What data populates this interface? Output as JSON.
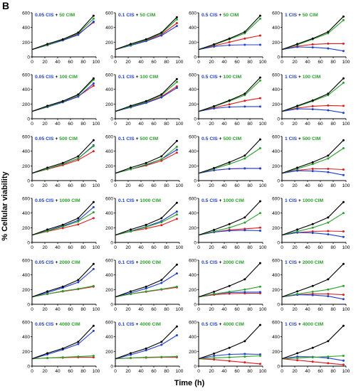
{
  "figure": {
    "panel_letter": "B",
    "ylabel": "% Cellular viability",
    "xlabel": "Time (h)"
  },
  "colors": {
    "control": "#000000",
    "combo": "#2ca02c",
    "cis": "#1f3fd1",
    "cim": "#e31a1c",
    "title_cis": "#1f3fd1",
    "title_cim": "#2ca02c"
  },
  "chart_data": {
    "type": "scatter",
    "grid": false,
    "x_ticks": [
      0,
      20,
      40,
      60,
      80,
      100
    ],
    "y_ticks": [
      0,
      200,
      400,
      600
    ],
    "xlim": [
      0,
      100
    ],
    "ylim": [
      0,
      600
    ],
    "time_points": [
      0,
      24,
      48,
      72,
      96
    ],
    "panel_columns": [
      "0.05 CIS",
      "0.1 CIS",
      "0.5 CIS",
      "1 CIS"
    ],
    "panel_rows": [
      "50 CIM",
      "100 CIM",
      "500 CIM",
      "1000 CIM",
      "2000 CIM",
      "4000 CIM"
    ],
    "panels": [
      {
        "cis": "0.05 CIS",
        "cim": "50 CIM",
        "control": [
          100,
          175,
          240,
          330,
          560
        ],
        "combo": [
          100,
          165,
          235,
          320,
          520
        ],
        "cis_curve": [
          100,
          160,
          225,
          300,
          480
        ],
        "cim_curve": [
          100,
          160,
          230,
          310,
          470
        ]
      },
      {
        "cis": "0.1 CIS",
        "cim": "50 CIM",
        "control": [
          100,
          175,
          240,
          330,
          540
        ],
        "combo": [
          100,
          165,
          230,
          320,
          510
        ],
        "cis_curve": [
          100,
          155,
          215,
          290,
          420
        ],
        "cim_curve": [
          100,
          160,
          225,
          305,
          460
        ]
      },
      {
        "cis": "0.5 CIS",
        "cim": "50 CIM",
        "control": [
          100,
          170,
          250,
          340,
          560
        ],
        "combo": [
          100,
          165,
          240,
          320,
          520
        ],
        "cis_curve": [
          100,
          140,
          160,
          165,
          165
        ],
        "cim_curve": [
          100,
          150,
          200,
          250,
          290
        ]
      },
      {
        "cis": "1 CIS",
        "cim": "50 CIM",
        "control": [
          100,
          175,
          250,
          340,
          550
        ],
        "combo": [
          100,
          165,
          240,
          320,
          500
        ],
        "cis_curve": [
          100,
          135,
          130,
          115,
          80
        ],
        "cim_curve": [
          100,
          145,
          170,
          180,
          180
        ]
      },
      {
        "cis": "0.05 CIS",
        "cim": "100 CIM",
        "control": [
          100,
          175,
          240,
          330,
          550
        ],
        "combo": [
          100,
          165,
          235,
          320,
          530
        ],
        "cis_curve": [
          100,
          160,
          225,
          300,
          480
        ],
        "cim_curve": [
          100,
          160,
          225,
          305,
          450
        ]
      },
      {
        "cis": "0.1 CIS",
        "cim": "100 CIM",
        "control": [
          100,
          175,
          240,
          330,
          540
        ],
        "combo": [
          100,
          165,
          230,
          320,
          500
        ],
        "cis_curve": [
          100,
          155,
          215,
          290,
          420
        ],
        "cim_curve": [
          100,
          160,
          220,
          300,
          440
        ]
      },
      {
        "cis": "0.5 CIS",
        "cim": "100 CIM",
        "control": [
          100,
          170,
          250,
          340,
          560
        ],
        "combo": [
          100,
          165,
          240,
          320,
          520
        ],
        "cis_curve": [
          100,
          140,
          160,
          165,
          165
        ],
        "cim_curve": [
          100,
          150,
          195,
          245,
          280
        ]
      },
      {
        "cis": "1 CIS",
        "cim": "100 CIM",
        "control": [
          100,
          175,
          250,
          340,
          550
        ],
        "combo": [
          100,
          165,
          240,
          320,
          490
        ],
        "cis_curve": [
          100,
          135,
          130,
          115,
          80
        ],
        "cim_curve": [
          100,
          145,
          170,
          180,
          175
        ]
      },
      {
        "cis": "0.05 CIS",
        "cim": "500 CIM",
        "control": [
          100,
          175,
          240,
          330,
          550
        ],
        "combo": [
          100,
          160,
          225,
          300,
          470
        ],
        "cis_curve": [
          100,
          160,
          225,
          300,
          480
        ],
        "cim_curve": [
          100,
          155,
          210,
          280,
          400
        ]
      },
      {
        "cis": "0.1 CIS",
        "cim": "500 CIM",
        "control": [
          100,
          175,
          240,
          330,
          540
        ],
        "combo": [
          100,
          155,
          220,
          290,
          460
        ],
        "cis_curve": [
          100,
          155,
          215,
          290,
          420
        ],
        "cim_curve": [
          100,
          155,
          205,
          270,
          380
        ]
      },
      {
        "cis": "0.5 CIS",
        "cim": "500 CIM",
        "control": [
          100,
          170,
          250,
          340,
          560
        ],
        "combo": [
          100,
          160,
          225,
          300,
          440
        ],
        "cis_curve": [
          100,
          140,
          160,
          165,
          165
        ],
        "cim_curve": [
          100,
          140,
          160,
          165,
          165
        ]
      },
      {
        "cis": "1 CIS",
        "cim": "500 CIM",
        "control": [
          100,
          175,
          250,
          340,
          550
        ],
        "combo": [
          100,
          160,
          225,
          300,
          440
        ],
        "cis_curve": [
          100,
          135,
          130,
          115,
          75
        ],
        "cim_curve": [
          100,
          140,
          160,
          160,
          150
        ]
      },
      {
        "cis": "0.05 CIS",
        "cim": "1000 CIM",
        "control": [
          100,
          175,
          240,
          330,
          550
        ],
        "combo": [
          100,
          155,
          215,
          285,
          410
        ],
        "cis_curve": [
          100,
          160,
          225,
          300,
          480
        ],
        "cim_curve": [
          100,
          150,
          195,
          245,
          330
        ]
      },
      {
        "cis": "0.1 CIS",
        "cim": "1000 CIM",
        "control": [
          100,
          175,
          240,
          330,
          540
        ],
        "combo": [
          100,
          150,
          210,
          275,
          380
        ],
        "cis_curve": [
          100,
          155,
          215,
          290,
          420
        ],
        "cim_curve": [
          100,
          150,
          190,
          235,
          320
        ]
      },
      {
        "cis": "0.5 CIS",
        "cim": "1000 CIM",
        "control": [
          100,
          170,
          250,
          340,
          560
        ],
        "combo": [
          100,
          150,
          200,
          270,
          400
        ],
        "cis_curve": [
          100,
          140,
          160,
          165,
          160
        ],
        "cim_curve": [
          100,
          140,
          170,
          185,
          200
        ]
      },
      {
        "cis": "1 CIS",
        "cim": "1000 CIM",
        "control": [
          100,
          175,
          250,
          340,
          550
        ],
        "combo": [
          100,
          150,
          200,
          270,
          400
        ],
        "cis_curve": [
          100,
          135,
          130,
          110,
          75
        ],
        "cim_curve": [
          100,
          135,
          150,
          155,
          150
        ]
      },
      {
        "cis": "0.05 CIS",
        "cim": "2000 CIM",
        "control": [
          100,
          175,
          240,
          330,
          550
        ],
        "combo": [
          100,
          140,
          180,
          210,
          250
        ],
        "cis_curve": [
          100,
          160,
          225,
          300,
          480
        ],
        "cim_curve": [
          100,
          140,
          175,
          205,
          240
        ]
      },
      {
        "cis": "0.1 CIS",
        "cim": "2000 CIM",
        "control": [
          100,
          175,
          240,
          330,
          540
        ],
        "combo": [
          100,
          140,
          175,
          205,
          240
        ],
        "cis_curve": [
          100,
          155,
          215,
          290,
          420
        ],
        "cim_curve": [
          100,
          140,
          170,
          200,
          230
        ]
      },
      {
        "cis": "0.5 CIS",
        "cim": "2000 CIM",
        "control": [
          100,
          170,
          250,
          340,
          560
        ],
        "combo": [
          100,
          140,
          170,
          200,
          240
        ],
        "cis_curve": [
          100,
          140,
          160,
          165,
          165
        ],
        "cim_curve": [
          100,
          130,
          145,
          150,
          150
        ]
      },
      {
        "cis": "1 CIS",
        "cim": "2000 CIM",
        "control": [
          100,
          175,
          250,
          340,
          550
        ],
        "combo": [
          100,
          140,
          170,
          200,
          250
        ],
        "cis_curve": [
          100,
          130,
          125,
          110,
          70
        ],
        "cim_curve": [
          100,
          130,
          140,
          140,
          130
        ]
      },
      {
        "cis": "0.05 CIS",
        "cim": "4000 CIM",
        "control": [
          100,
          175,
          240,
          330,
          550
        ],
        "combo": [
          100,
          110,
          120,
          130,
          140
        ],
        "cis_curve": [
          100,
          160,
          225,
          300,
          480
        ],
        "cim_curve": [
          100,
          110,
          115,
          120,
          120
        ]
      },
      {
        "cis": "0.1 CIS",
        "cim": "4000 CIM",
        "control": [
          100,
          175,
          240,
          330,
          540
        ],
        "combo": [
          100,
          110,
          120,
          125,
          130
        ],
        "cis_curve": [
          100,
          155,
          215,
          290,
          420
        ],
        "cim_curve": [
          100,
          110,
          115,
          120,
          120
        ]
      },
      {
        "cis": "0.5 CIS",
        "cim": "4000 CIM",
        "control": [
          100,
          170,
          250,
          340,
          560
        ],
        "combo": [
          100,
          110,
          120,
          130,
          140
        ],
        "cis_curve": [
          100,
          140,
          160,
          165,
          160
        ],
        "cim_curve": [
          100,
          90,
          70,
          50,
          30
        ]
      },
      {
        "cis": "1 CIS",
        "cim": "4000 CIM",
        "control": [
          100,
          175,
          250,
          340,
          550
        ],
        "combo": [
          100,
          110,
          120,
          130,
          140
        ],
        "cis_curve": [
          100,
          130,
          125,
          110,
          75
        ],
        "cim_curve": [
          100,
          80,
          60,
          40,
          20
        ]
      }
    ]
  }
}
